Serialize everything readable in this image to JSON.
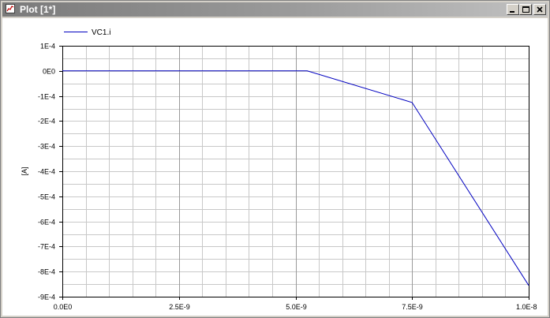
{
  "window": {
    "title": "Plot [1*]",
    "icon": "plot-window-icon",
    "buttons": {
      "minimize": "minimize-icon",
      "maximize": "maximize-icon",
      "close": "close-icon"
    }
  },
  "chart_data": {
    "type": "line",
    "title": "",
    "xlabel": "",
    "ylabel": "[A]",
    "xlim": [
      0,
      1e-08
    ],
    "ylim": [
      -0.0009,
      0.0001
    ],
    "grid": true,
    "legend_position": "top-left",
    "x_ticks": [
      {
        "value": 0,
        "label": "0.0E0"
      },
      {
        "value": 2.5e-09,
        "label": "2.5E-9"
      },
      {
        "value": 5e-09,
        "label": "5.0E-9"
      },
      {
        "value": 7.5e-09,
        "label": "7.5E-9"
      },
      {
        "value": 1e-08,
        "label": "1.0E-8"
      }
    ],
    "y_ticks": [
      {
        "value": 0.0001,
        "label": "1E-4"
      },
      {
        "value": 0,
        "label": "0E0"
      },
      {
        "value": -0.0001,
        "label": "-1E-4"
      },
      {
        "value": -0.0002,
        "label": "-2E-4"
      },
      {
        "value": -0.0003,
        "label": "-3E-4"
      },
      {
        "value": -0.0004,
        "label": "-4E-4"
      },
      {
        "value": -0.0005,
        "label": "-5E-4"
      },
      {
        "value": -0.0006,
        "label": "-6E-4"
      },
      {
        "value": -0.0007,
        "label": "-7E-4"
      },
      {
        "value": -0.0008,
        "label": "-8E-4"
      },
      {
        "value": -0.0009,
        "label": "-9E-4"
      }
    ],
    "x_minor_step": 5e-10,
    "y_minor_step": 5e-05,
    "series": [
      {
        "name": "VC1.i",
        "color": "#0000c0",
        "x": [
          0,
          5.25e-09,
          7.5e-09,
          1e-08
        ],
        "y": [
          0,
          0,
          -0.000126,
          -0.000855
        ]
      }
    ]
  }
}
